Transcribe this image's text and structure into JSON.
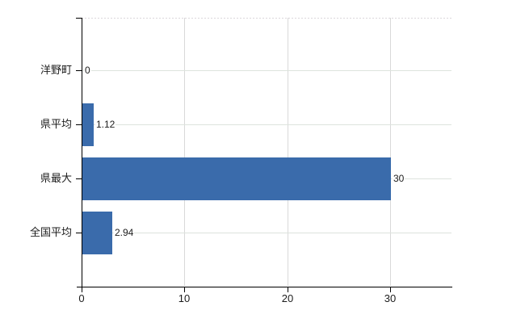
{
  "page": {
    "background": "#ffffff"
  },
  "chart_data": {
    "type": "bar",
    "orientation": "horizontal",
    "title": "",
    "xlabel": "",
    "ylabel": "",
    "categories": [
      "洋野町",
      "県平均",
      "県最大",
      "全国平均"
    ],
    "values": [
      0,
      1.12,
      30,
      2.94
    ],
    "value_labels": [
      "0",
      "1.12",
      "30",
      "2.94"
    ],
    "xticks": [
      0,
      10,
      20,
      30
    ],
    "xtick_labels": [
      "0",
      "10",
      "20",
      "30"
    ],
    "xlim": [
      0,
      36
    ],
    "grid": "on",
    "legend": "none",
    "colors": {
      "bar": "#3a6bab",
      "axis": "#000000",
      "vertical_grid": "#d9d9d9",
      "horizontal_grid": "#dde3dd",
      "top_border_dashed": "#dbd7db",
      "label_text": "#1c1c1c"
    }
  }
}
